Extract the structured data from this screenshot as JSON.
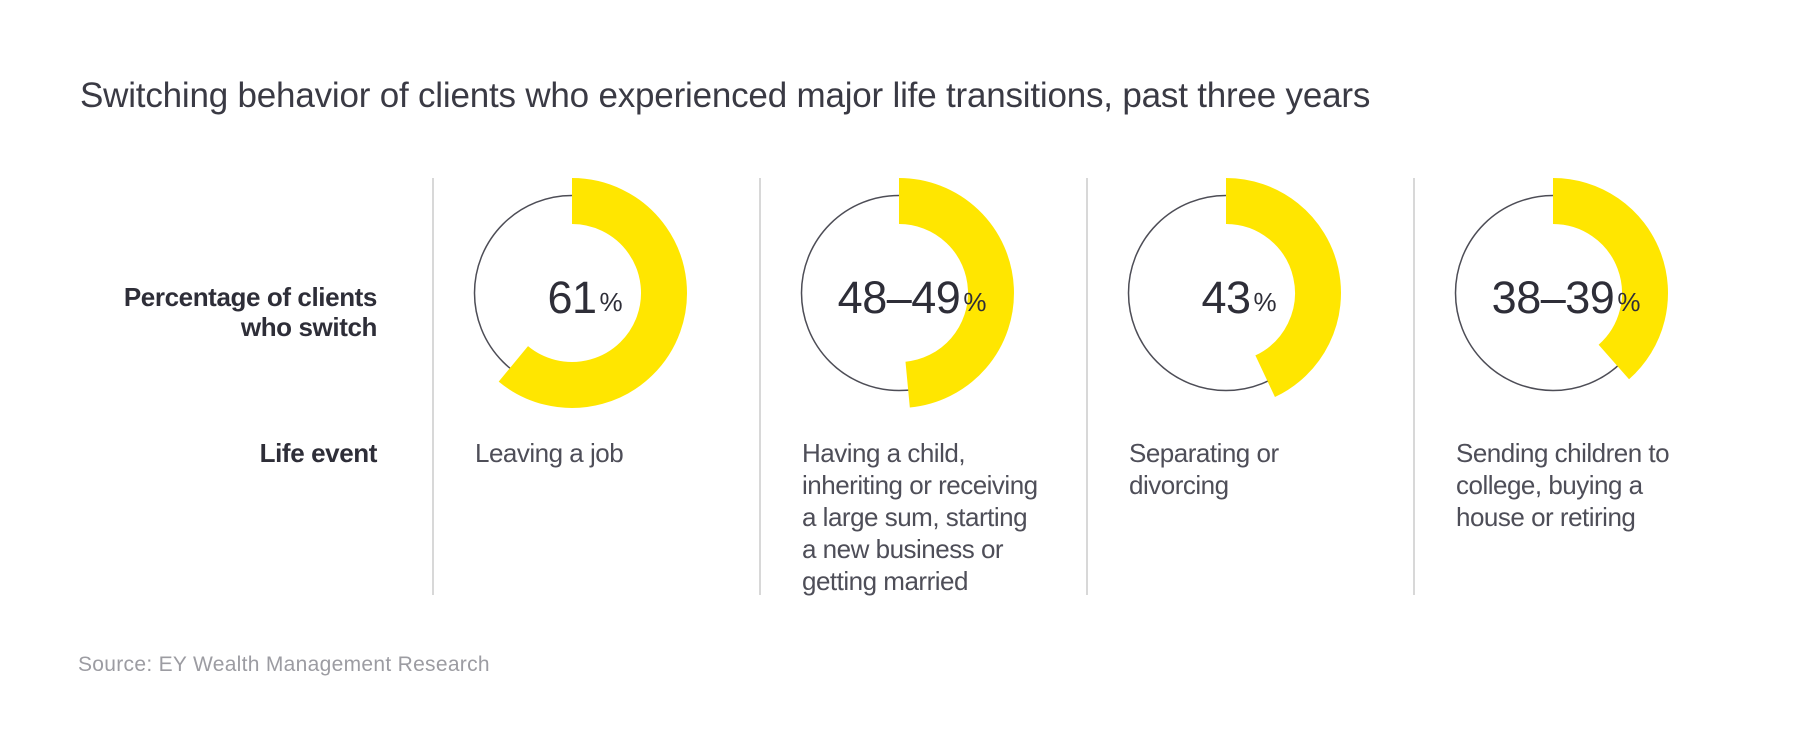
{
  "chart_data": {
    "type": "donut",
    "title": "Switching behavior of clients who experienced major life transitions, past three years",
    "unit": "%",
    "arc_start": "top",
    "arc_direction": "clockwise",
    "legend_position": "none",
    "grid": false,
    "row_labels": {
      "percentage_lines": [
        "Percentage of clients",
        "who switch"
      ],
      "life_event": "Life event"
    },
    "donuts": [
      {
        "value_label": "61",
        "value_pct": 61,
        "value_range": [
          61,
          61
        ],
        "life_event": "Leaving a job",
        "life_event_lines": [
          "Leaving a job"
        ]
      },
      {
        "value_label": "48–49",
        "value_pct": 48.5,
        "value_range": [
          48,
          49
        ],
        "life_event": "Having a child, inheriting or receiving a large sum, starting a new business or getting married",
        "life_event_lines": [
          "Having a child,",
          "inheriting or receiving",
          "a large sum, starting",
          "a new business or",
          "getting married"
        ]
      },
      {
        "value_label": "43",
        "value_pct": 43,
        "value_range": [
          43,
          43
        ],
        "life_event": "Separating or divorcing",
        "life_event_lines": [
          "Separating or",
          "divorcing"
        ]
      },
      {
        "value_label": "38–39",
        "value_pct": 38.5,
        "value_range": [
          38,
          39
        ],
        "life_event": "Sending children to college, buying a house or retiring",
        "life_event_lines": [
          "Sending children to",
          "college, buying a",
          "house or retiring"
        ]
      }
    ],
    "source": "Source: EY Wealth Management Research",
    "colors": {
      "arc": "#FFE600",
      "ring_outline": "#4D4D56",
      "title_text": "#3A3A44",
      "label_text": "#2E2E38",
      "value_text": "#2E2E38",
      "body_text": "#4E4E58",
      "source_text": "#9C9CA2",
      "divider": "#D8D8D8"
    }
  }
}
